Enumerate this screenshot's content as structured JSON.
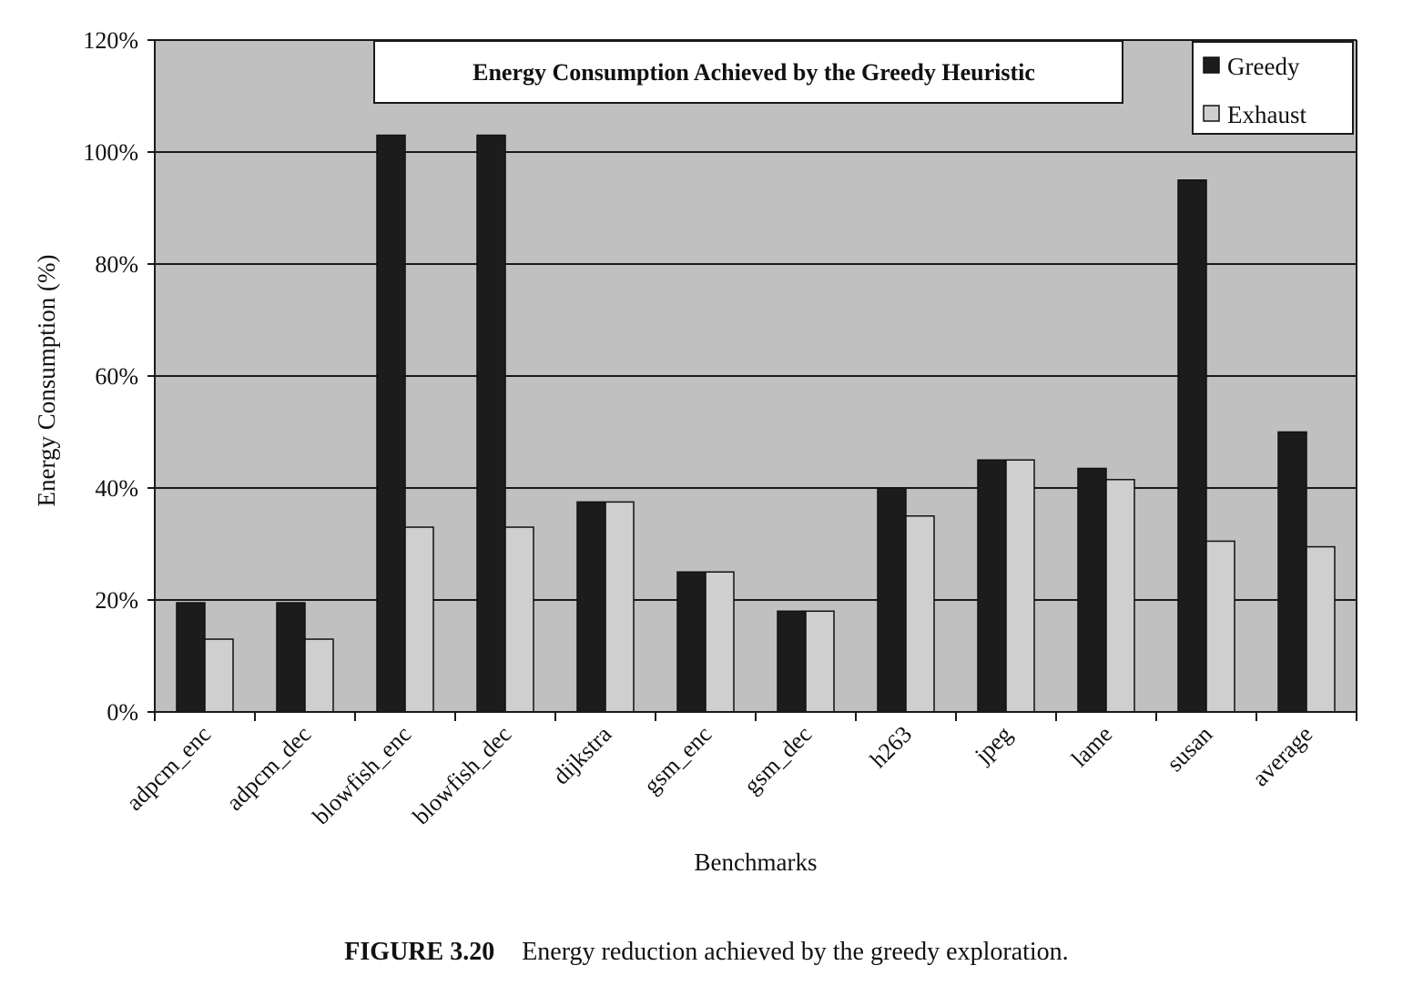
{
  "chart_data": {
    "type": "bar",
    "title": "Energy Consumption Achieved by the Greedy Heuristic",
    "xlabel": "Benchmarks",
    "ylabel": "Energy Consumption (%)",
    "ylim": [
      0,
      120
    ],
    "yticks": [
      0,
      20,
      40,
      60,
      80,
      100,
      120
    ],
    "ytick_labels": [
      "0%",
      "20%",
      "40%",
      "60%",
      "80%",
      "100%",
      "120%"
    ],
    "grid": true,
    "legend_position": "top-right",
    "categories": [
      "adpcm_enc",
      "adpcm_dec",
      "blowfish_enc",
      "blowfish_dec",
      "dijkstra",
      "gsm_enc",
      "gsm_dec",
      "h263",
      "jpeg",
      "lame",
      "susan",
      "average"
    ],
    "series": [
      {
        "name": "Greedy",
        "color": "#1c1c1c",
        "values": [
          19.5,
          19.5,
          103,
          103,
          37.5,
          25,
          18,
          40,
          45,
          43.5,
          95,
          50
        ]
      },
      {
        "name": "Exhaust",
        "color": "#cfcfcf",
        "values": [
          13,
          13,
          33,
          33,
          37.5,
          25,
          18,
          35,
          45,
          41.5,
          30.5,
          29.5
        ]
      }
    ],
    "plot_background": "#c0c0c0"
  },
  "caption": {
    "figure_number": "FIGURE 3.20",
    "text": "Energy reduction achieved by the greedy exploration."
  }
}
